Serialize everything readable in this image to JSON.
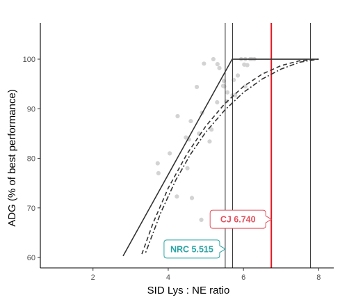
{
  "chart_data": {
    "type": "scatter",
    "title": "",
    "xlabel": "SID Lys : NE ratio",
    "ylabel": "ADG (% of best performance)",
    "xlim": [
      0.6,
      8.4
    ],
    "ylim": [
      57.9,
      107.3
    ],
    "x_ticks": [
      2,
      4,
      6,
      8
    ],
    "y_ticks": [
      60,
      70,
      80,
      90,
      100
    ],
    "x_tick_labels": [
      "2",
      "4",
      "6",
      "8"
    ],
    "y_tick_labels": [
      "60",
      "70",
      "80",
      "90",
      "100"
    ],
    "grid": false,
    "points": {
      "name": "",
      "color": "#d3d3d3",
      "x": [
        3.72,
        3.74,
        4.04,
        4.25,
        4.23,
        4.47,
        4.55,
        4.6,
        4.51,
        4.63,
        4.76,
        4.82,
        4.9,
        4.95,
        5.1,
        5.15,
        5.2,
        5.31,
        5.36,
        5.46,
        5.48,
        5.55,
        5.57,
        5.71,
        5.74,
        5.85,
        5.94,
        6.02,
        6.05,
        6.1,
        6.18,
        6.22,
        6.29,
        5.3,
        5.49,
        5.78,
        6.05,
        4.88
      ],
      "y": [
        79.0,
        77.0,
        81.0,
        88.5,
        72.3,
        84.2,
        83.8,
        87.5,
        78.0,
        72.0,
        94.4,
        85.0,
        89.2,
        99.1,
        83.4,
        85.8,
        100.0,
        99.0,
        98.2,
        94.6,
        95.6,
        91.5,
        93.3,
        92.7,
        95.8,
        96.7,
        100.0,
        98.9,
        100.0,
        98.8,
        100.0,
        100.0,
        100.0,
        91.3,
        94.5,
        92.7,
        94.5,
        67.6
      ]
    },
    "series": [
      {
        "name": "",
        "style": "solid",
        "color": "#333333",
        "x": [
          2.8,
          5.7,
          8.0
        ],
        "y": [
          60.3,
          100.0,
          100.0
        ]
      },
      {
        "name": "",
        "style": "dashed",
        "color": "#333333",
        "x": [
          3.3,
          3.6,
          4.0,
          4.5,
          5.0,
          5.5,
          6.0,
          6.5,
          7.0,
          7.5,
          8.0
        ],
        "y": [
          60.7,
          67.0,
          74.0,
          80.9,
          86.5,
          91.0,
          94.5,
          97.0,
          98.7,
          99.7,
          100.0
        ]
      },
      {
        "name": "",
        "style": "dotdash",
        "color": "#333333",
        "x": [
          3.4,
          3.8,
          4.2,
          4.6,
          5.0,
          5.5,
          6.0,
          6.5,
          7.0,
          7.5,
          8.0
        ],
        "y": [
          61.0,
          69.0,
          75.6,
          80.9,
          85.3,
          89.7,
          93.3,
          96.0,
          98.0,
          99.4,
          100.0
        ]
      }
    ],
    "vlines": [
      {
        "x": 5.515,
        "color": "#333333"
      },
      {
        "x": 5.71,
        "color": "#333333"
      },
      {
        "x": 6.74,
        "color": "#e0161e"
      },
      {
        "x": 7.78,
        "color": "#333333"
      }
    ],
    "annotations": [
      {
        "text": "CJ 6.740",
        "x": 6.74,
        "y": 67.7,
        "color": "#e0505c",
        "pointer": "right"
      },
      {
        "text": "NRC 5.515",
        "x": 5.515,
        "y": 61.7,
        "color": "#2aa4a4",
        "pointer": "right"
      }
    ]
  }
}
